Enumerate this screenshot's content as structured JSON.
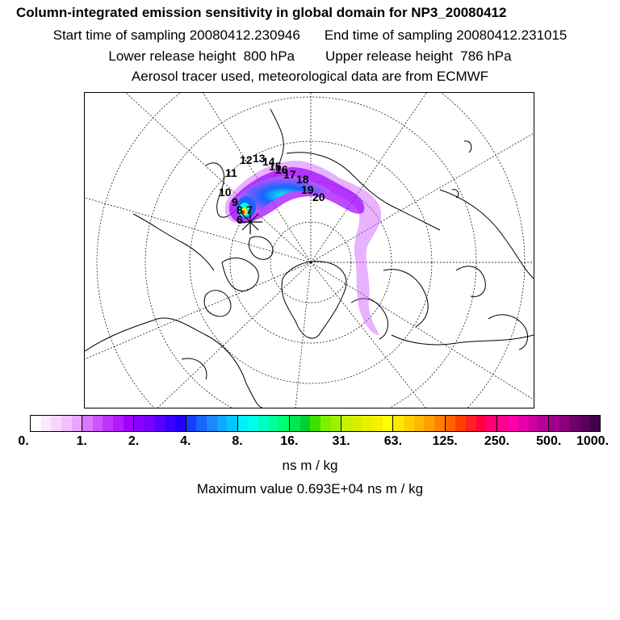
{
  "header": {
    "title": "Column-integrated emission sensitivity in global domain for NP3_20080412",
    "start_label": "Start time of sampling 20080412.230946",
    "end_label": "End time of sampling 20080412.231015",
    "lower_label": "Lower release height  800 hPa",
    "upper_label": "Upper release height  786 hPa",
    "tracer_line": "Aerosol tracer used, meteorological data are from ECMWF"
  },
  "map": {
    "projection": "north-polar-stereographic",
    "trajectory_labels": [
      "6",
      "7",
      "8",
      "9",
      "10",
      "11",
      "12",
      "13",
      "14",
      "15",
      "16",
      "17",
      "18",
      "19",
      "20"
    ]
  },
  "colorbar": {
    "tick_labels": [
      "0.",
      "1.",
      "2.",
      "4.",
      "8.",
      "16.",
      "31.",
      "63.",
      "125.",
      "250.",
      "500.",
      "1000."
    ],
    "colors": [
      "#ffffff",
      "#fbe9ff",
      "#f6d6ff",
      "#f0c0ff",
      "#e8a6ff",
      "#d877ff",
      "#cc55ff",
      "#c033ff",
      "#b41aff",
      "#a000ff",
      "#8a00ff",
      "#7400ff",
      "#5a00ff",
      "#3c00ff",
      "#2000ff",
      "#1a3cff",
      "#1a64ff",
      "#1a88ff",
      "#10a8ff",
      "#00c8ff",
      "#00f0ff",
      "#00ffe8",
      "#00ffc0",
      "#00ff98",
      "#00ff70",
      "#00e850",
      "#00d030",
      "#40e000",
      "#80ee00",
      "#a0f000",
      "#c8f000",
      "#d8ee00",
      "#e8f000",
      "#f4f000",
      "#ffff00",
      "#ffe800",
      "#ffd000",
      "#ffb800",
      "#ffa000",
      "#ff8000",
      "#ff6400",
      "#ff4000",
      "#ff2020",
      "#ff0040",
      "#ff0070",
      "#ff0090",
      "#ff00a8",
      "#e800a8",
      "#d000a0",
      "#b80098",
      "#a0008a",
      "#88007a",
      "#70006a",
      "#58005a",
      "#40004a"
    ],
    "units": "ns m / kg",
    "max_value": "Maximum value  0.693E+04 ns m / kg"
  }
}
